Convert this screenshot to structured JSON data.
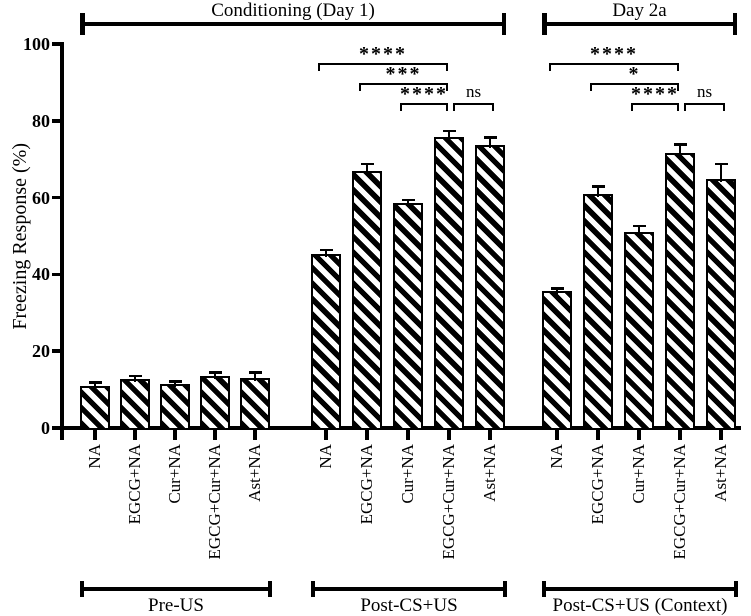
{
  "figure": {
    "background_color": "#ffffff",
    "ink_color": "#000000"
  },
  "chart_data": {
    "type": "bar",
    "title": "",
    "ylabel": "Freezing Response (%)",
    "xlabel": "",
    "ylim": [
      0,
      100
    ],
    "yticks": [
      0,
      20,
      40,
      60,
      80,
      100
    ],
    "grid": false,
    "legend": null,
    "bar_style": "black-diagonal-hatch-on-white",
    "error_bars": "SEM upper, T-cap",
    "categories": [
      "NA",
      "EGCG+NA",
      "Cur+NA",
      "EGCG+Cur+NA",
      "Ast+NA"
    ],
    "groups": [
      {
        "label": "Pre-US",
        "values": [
          11,
          12.7,
          11.4,
          13.6,
          13.1
        ],
        "errors": [
          0.9,
          0.9,
          0.7,
          0.8,
          1.3
        ],
        "comparisons": []
      },
      {
        "label": "Post-CS+US",
        "values": [
          45.3,
          67,
          58.5,
          75.8,
          73.7
        ],
        "errors": [
          1.1,
          1.7,
          0.9,
          1.5,
          2
        ],
        "comparisons": [
          {
            "from": 0,
            "to": 3,
            "level": 0,
            "label": "****"
          },
          {
            "from": 1,
            "to": 3,
            "level": 1,
            "label": "***"
          },
          {
            "from": 2,
            "to": 3,
            "level": 2,
            "label": "****"
          },
          {
            "from": 3,
            "to": 4,
            "level": 2,
            "label": "ns"
          }
        ]
      },
      {
        "label": "Post-CS+US (Context)",
        "values": [
          35.7,
          61,
          51,
          71.5,
          64.8
        ],
        "errors": [
          0.6,
          1.9,
          1.6,
          2.3,
          4
        ],
        "comparisons": [
          {
            "from": 0,
            "to": 3,
            "level": 0,
            "label": "****"
          },
          {
            "from": 1,
            "to": 3,
            "level": 1,
            "label": "*"
          },
          {
            "from": 2,
            "to": 3,
            "level": 2,
            "label": "****"
          },
          {
            "from": 3,
            "to": 4,
            "level": 2,
            "label": "ns"
          }
        ]
      }
    ],
    "phase_brackets": [
      {
        "label": "Conditioning (Day 1)",
        "groups": [
          0,
          1
        ]
      },
      {
        "label": "Day 2a",
        "groups": [
          2
        ]
      }
    ]
  }
}
